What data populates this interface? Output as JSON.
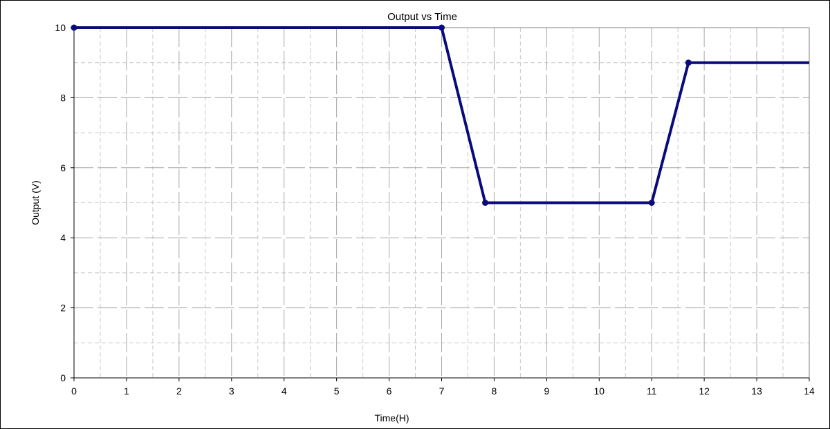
{
  "chart_data": {
    "type": "line",
    "title": "Output vs Time",
    "xlabel": "Time(H)",
    "ylabel": "Output (V)",
    "xlim": [
      0,
      14
    ],
    "ylim": [
      0,
      10
    ],
    "x_ticks": [
      0,
      1,
      2,
      3,
      4,
      5,
      6,
      7,
      8,
      9,
      10,
      11,
      12,
      13,
      14
    ],
    "y_ticks": [
      0,
      2,
      4,
      6,
      8,
      10
    ],
    "grid": true,
    "legend": "none",
    "series": [
      {
        "color": "#0a0a7a",
        "points": [
          {
            "x": 0,
            "y": 10
          },
          {
            "x": 7,
            "y": 10
          },
          {
            "x": 7.83,
            "y": 5
          },
          {
            "x": 11,
            "y": 5
          },
          {
            "x": 11.7,
            "y": 9
          },
          {
            "x": 14,
            "y": 9
          }
        ],
        "markers": [
          0,
          1,
          2,
          3,
          4
        ]
      }
    ]
  }
}
